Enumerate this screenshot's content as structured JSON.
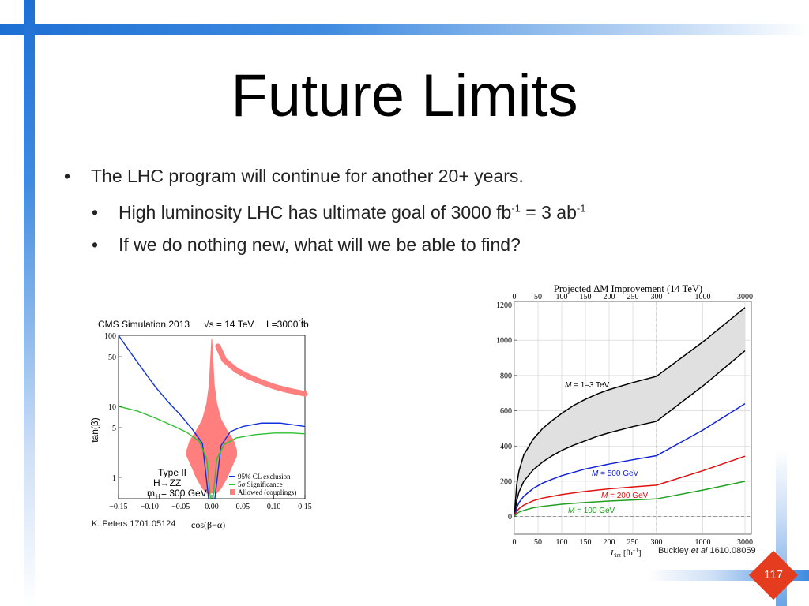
{
  "slide": {
    "title": "Future Limits",
    "bullets": [
      {
        "text": "The LHC program will continue for another 20+ years."
      },
      {
        "text_pre": "High luminosity LHC has ultimate goal of 3000 fb",
        "sup1": "-1",
        "text_mid": " = 3 ab",
        "sup2": "-1"
      },
      {
        "text": "If we do nothing new, what will we be able to find?"
      }
    ],
    "page_number": "117",
    "colors": {
      "accent_blue": "#1d6fd3",
      "page_badge": "#e53b1f"
    }
  },
  "chart_data": [
    {
      "type": "scatter",
      "header": "CMS Simulation 2013",
      "header_energy": "√s = 14 TeV",
      "header_lumi": "L=3000 fb",
      "header_lumi_sup": "-1",
      "xlabel": "cos(β−α)",
      "ylabel": "tan(β)",
      "xlim": [
        -0.15,
        0.15
      ],
      "ylim": [
        0.5,
        100
      ],
      "yscale": "log",
      "xticks": [
        "−0.15",
        "−0.10",
        "−0.05",
        "0.00",
        "0.05",
        "0.10",
        "0.15"
      ],
      "xtick_values": [
        -0.15,
        -0.1,
        -0.05,
        0.0,
        0.05,
        0.1,
        0.15
      ],
      "yticks": [
        "100",
        "50",
        "10",
        "5",
        "1"
      ],
      "ytick_values": [
        100,
        50,
        10,
        5,
        1
      ],
      "annotations": [
        "Type II",
        "H→ZZ",
        "m",
        "H",
        " = 300 GeV"
      ],
      "legend": [
        "95% CL exclusion",
        "5σ Significance",
        "Allowed (couplings)"
      ],
      "legend_placement": "bottom-right",
      "series": [
        {
          "name": "95% CL exclusion",
          "color": "#1030e0",
          "x": [
            -0.15,
            -0.13,
            -0.11,
            -0.09,
            -0.07,
            -0.05,
            -0.03,
            -0.015,
            -0.005,
            0.005,
            0.015,
            0.03,
            0.05,
            0.08,
            0.11,
            0.13,
            0.15
          ],
          "y": [
            100,
            56,
            32,
            18.5,
            11.5,
            7.5,
            4.6,
            3.0,
            0.5,
            0.5,
            2.8,
            4.4,
            5.2,
            5.8,
            5.8,
            5.5,
            5.2
          ]
        },
        {
          "name": "5σ Significance",
          "color": "#2ec030",
          "x": [
            -0.15,
            -0.12,
            -0.09,
            -0.06,
            -0.04,
            -0.02,
            -0.008,
            -0.002,
            0.002,
            0.008,
            0.02,
            0.04,
            0.07,
            0.1,
            0.13,
            0.15
          ],
          "y": [
            10,
            8.6,
            6.8,
            5.2,
            4.3,
            3.2,
            1.8,
            0.5,
            0.5,
            1.8,
            2.9,
            3.6,
            4.0,
            4.2,
            4.2,
            4.1
          ]
        },
        {
          "name": "Allowed (couplings) main",
          "color": "#ff7f7f",
          "x": [
            -0.04,
            -0.035,
            -0.025,
            -0.015,
            -0.008,
            -0.004,
            0.0,
            0.004,
            0.008,
            0.015,
            0.025,
            0.035,
            0.04
          ],
          "ylow": [
            2.0,
            1.6,
            1.0,
            0.7,
            0.6,
            0.6,
            0.6,
            0.6,
            0.6,
            0.7,
            1.0,
            1.6,
            2.0
          ],
          "yhigh": [
            2.4,
            3.3,
            4.5,
            6.5,
            11,
            20,
            90,
            20,
            11,
            6.5,
            4.5,
            3.3,
            2.4
          ]
        },
        {
          "name": "Allowed (couplings) arc",
          "color": "#ff7f7f",
          "x": [
            0.01,
            0.02,
            0.04,
            0.06,
            0.08,
            0.1,
            0.12,
            0.15
          ],
          "y": [
            70,
            45,
            32,
            26,
            22,
            19,
            17,
            15
          ]
        }
      ],
      "caption": "K. Peters 1701.05124"
    },
    {
      "type": "line",
      "title": "Projected ΔM Improvement (14 TeV)",
      "xlabel": "L",
      "xlabel_sub": "int",
      "xlabel_unit": "[fb",
      "xlabel_unit_sup": "−1",
      "xlabel_unit_close": "]",
      "xticks": [
        "0",
        "50",
        "100",
        "150",
        "200",
        "250",
        "300",
        "1000",
        "3000"
      ],
      "xtick_values": [
        0,
        50,
        100,
        150,
        200,
        250,
        300,
        1000,
        3000
      ],
      "yticks": [
        "1200",
        "1000",
        "800",
        "600",
        "400",
        "200",
        "0"
      ],
      "ytick_values": [
        1200,
        1000,
        800,
        600,
        400,
        200,
        0
      ],
      "ylim": [
        -100,
        1220
      ],
      "xscale": "piecewise: linear 0–300, log 300–3000",
      "grid": true,
      "series": [
        {
          "name": "M = 1–3 TeV",
          "color": "#000000",
          "kind": "upper",
          "x": [
            0,
            5,
            10,
            20,
            40,
            60,
            80,
            100,
            125,
            150,
            175,
            200,
            250,
            300,
            1000,
            3000
          ],
          "y": [
            0,
            180,
            260,
            350,
            440,
            500,
            545,
            585,
            630,
            665,
            695,
            720,
            760,
            795,
            990,
            1185
          ]
        },
        {
          "name": "M = 1–3 TeV",
          "color": "#000000",
          "kind": "lower",
          "x": [
            0,
            5,
            10,
            20,
            40,
            60,
            80,
            100,
            125,
            150,
            175,
            200,
            250,
            300,
            1000,
            3000
          ],
          "y": [
            0,
            90,
            140,
            200,
            265,
            310,
            345,
            375,
            405,
            430,
            455,
            475,
            510,
            540,
            740,
            940
          ]
        },
        {
          "name": "M = 500 GeV",
          "color": "#1020d8",
          "x": [
            0,
            5,
            10,
            20,
            40,
            60,
            80,
            100,
            150,
            200,
            250,
            300,
            1000,
            3000
          ],
          "y": [
            0,
            50,
            80,
            115,
            160,
            190,
            212,
            232,
            270,
            298,
            322,
            345,
            490,
            640
          ]
        },
        {
          "name": "M = 200 GeV",
          "color": "#e01010",
          "x": [
            0,
            5,
            10,
            20,
            40,
            60,
            80,
            100,
            150,
            200,
            250,
            300,
            1000,
            3000
          ],
          "y": [
            0,
            30,
            45,
            65,
            90,
            105,
            115,
            125,
            143,
            157,
            168,
            178,
            260,
            342
          ]
        },
        {
          "name": "M = 100 GeV",
          "color": "#20a020",
          "x": [
            0,
            5,
            10,
            20,
            40,
            60,
            80,
            100,
            150,
            200,
            250,
            300,
            1000,
            3000
          ],
          "y": [
            0,
            15,
            25,
            35,
            50,
            58,
            64,
            70,
            80,
            88,
            94,
            100,
            150,
            200
          ]
        }
      ],
      "labels": [
        "M",
        " = 1–3 TeV",
        "M",
        " = 500 GeV",
        "M",
        " = 200 GeV",
        "M",
        " = 100 GeV"
      ],
      "caption_author": "Buckley",
      "caption_etal": " et al",
      "caption_ref": " 1610.08059"
    }
  ]
}
